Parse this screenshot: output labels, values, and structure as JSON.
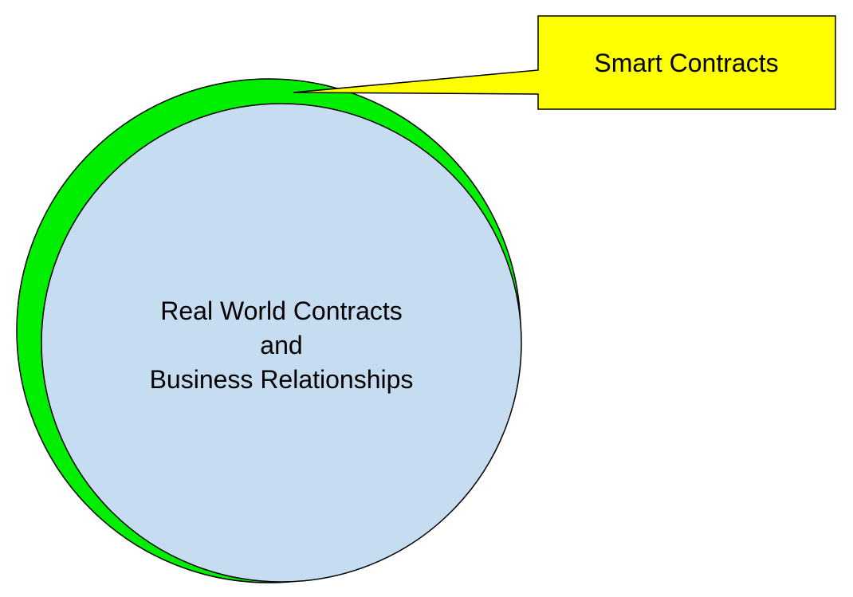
{
  "diagram": {
    "callout_label": "Smart Contracts",
    "circle_label_lines": [
      "Real World Contracts",
      "and",
      "Business Relationships"
    ]
  },
  "colors": {
    "background": "#ffffff",
    "outer_circle_fill": "#00ee00",
    "inner_circle_fill": "#c6dcf0",
    "callout_fill": "#ffff00",
    "stroke": "#000000",
    "text": "#000000"
  }
}
